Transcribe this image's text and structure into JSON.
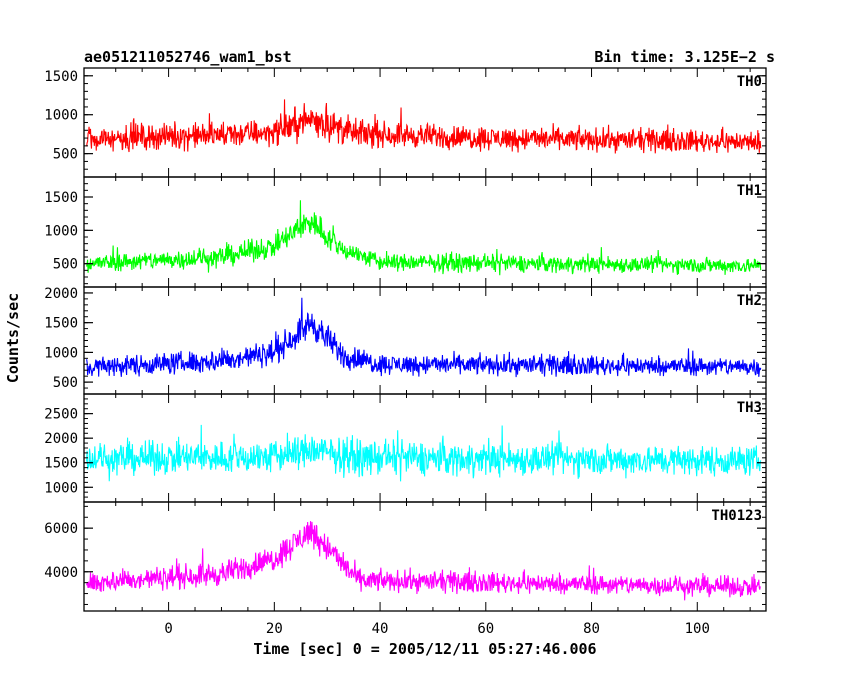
{
  "header": {
    "title_left": "ae051211052746_wam1_bst",
    "title_right": "Bin time: 3.125E−2 s"
  },
  "chart_data": {
    "type": "line",
    "xlabel": "Time [sec] 0 = 2005/12/11 05:27:46.006",
    "ylabel": "Counts/sec",
    "xlim": [
      -16,
      113
    ],
    "xticks": [
      0,
      20,
      40,
      60,
      80,
      100
    ],
    "x_tick_labels": [
      "0",
      "20",
      "40",
      "60",
      "80",
      "100"
    ],
    "x_range_data": [
      -15.5,
      112
    ],
    "bin_time": 0.03125,
    "panels": [
      {
        "name": "TH0",
        "color": "#ff0000",
        "ylim": [
          200,
          1600
        ],
        "yticks": [
          500,
          1000,
          1500
        ],
        "y_tick_labels": [
          "500",
          "1000",
          "1500"
        ],
        "baseline": [
          [
            -15.5,
            700
          ],
          [
            10,
            740
          ],
          [
            20,
            780
          ],
          [
            27,
            950
          ],
          [
            35,
            760
          ],
          [
            60,
            700
          ],
          [
            112,
            650
          ]
        ],
        "spread": [
          [
            -15.5,
            230
          ],
          [
            20,
            250
          ],
          [
            27,
            320
          ],
          [
            40,
            230
          ],
          [
            112,
            200
          ]
        ]
      },
      {
        "name": "TH1",
        "color": "#00ff00",
        "ylim": [
          150,
          1800
        ],
        "yticks": [
          500,
          1000,
          1500
        ],
        "y_tick_labels": [
          "500",
          "1000",
          "1500"
        ],
        "baseline": [
          [
            -15.5,
            500
          ],
          [
            10,
            600
          ],
          [
            20,
            760
          ],
          [
            27,
            1150
          ],
          [
            32,
            750
          ],
          [
            40,
            520
          ],
          [
            112,
            470
          ]
        ],
        "spread": [
          [
            -15.5,
            190
          ],
          [
            20,
            240
          ],
          [
            27,
            330
          ],
          [
            35,
            200
          ],
          [
            112,
            170
          ]
        ]
      },
      {
        "name": "TH2",
        "color": "#0000ff",
        "ylim": [
          300,
          2100
        ],
        "yticks": [
          500,
          1000,
          1500,
          2000
        ],
        "y_tick_labels": [
          "500",
          "1000",
          "1500",
          "2000"
        ],
        "baseline": [
          [
            -15.5,
            750
          ],
          [
            10,
            860
          ],
          [
            20,
            1000
          ],
          [
            27,
            1500
          ],
          [
            33,
            950
          ],
          [
            40,
            800
          ],
          [
            112,
            760
          ]
        ],
        "spread": [
          [
            -15.5,
            250
          ],
          [
            20,
            300
          ],
          [
            27,
            370
          ],
          [
            40,
            250
          ],
          [
            112,
            230
          ]
        ]
      },
      {
        "name": "TH3",
        "color": "#00ffff",
        "ylim": [
          700,
          2900
        ],
        "yticks": [
          1000,
          1500,
          2000,
          2500
        ],
        "y_tick_labels": [
          "1000",
          "1500",
          "2000",
          "2500"
        ],
        "baseline": [
          [
            -15.5,
            1580
          ],
          [
            20,
            1620
          ],
          [
            27,
            1760
          ],
          [
            35,
            1600
          ],
          [
            112,
            1540
          ]
        ],
        "spread": [
          [
            -15.5,
            450
          ],
          [
            27,
            520
          ],
          [
            112,
            430
          ]
        ]
      },
      {
        "name": "TH0123",
        "color": "#ff00ff",
        "ylim": [
          2200,
          7200
        ],
        "yticks": [
          4000,
          6000
        ],
        "y_tick_labels": [
          "4000",
          "6000"
        ],
        "baseline": [
          [
            -15.5,
            3500
          ],
          [
            10,
            3900
          ],
          [
            20,
            4600
          ],
          [
            27,
            5900
          ],
          [
            32,
            4600
          ],
          [
            36,
            3600
          ],
          [
            112,
            3300
          ]
        ],
        "spread": [
          [
            -15.5,
            700
          ],
          [
            20,
            850
          ],
          [
            27,
            1000
          ],
          [
            40,
            700
          ],
          [
            112,
            650
          ]
        ]
      }
    ]
  }
}
